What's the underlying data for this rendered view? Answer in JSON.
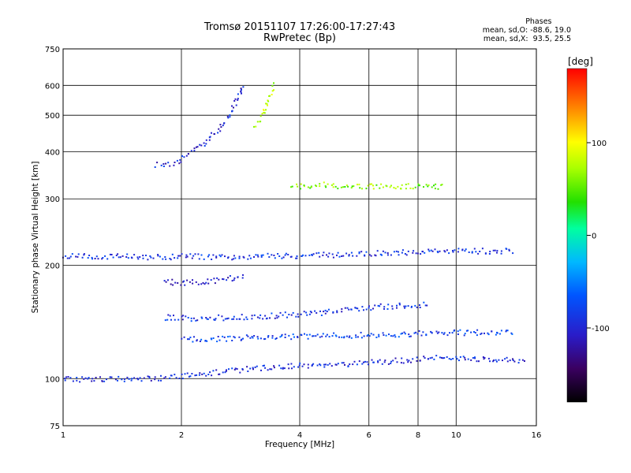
{
  "chart_data": {
    "type": "scatter",
    "title": "Tromsø 20151107 17:26:00-17:27:43",
    "subtitle": "RwPretec (Bp)",
    "xlabel": "Frequency [MHz]",
    "ylabel": "Stationary phase Virtual Height [km]",
    "xscale": "log",
    "yscale": "log",
    "xlim": [
      1,
      16
    ],
    "ylim": [
      75,
      750
    ],
    "x_ticks": [
      "1",
      "2",
      "4",
      "6",
      "8",
      "10",
      "16"
    ],
    "x_tick_values": [
      1,
      2,
      4,
      6,
      8,
      10,
      16
    ],
    "y_ticks": [
      "75",
      "100",
      "200",
      "300",
      "400",
      "500",
      "600",
      "750"
    ],
    "y_tick_values": [
      75,
      100,
      200,
      300,
      400,
      500,
      600,
      750
    ],
    "grid": true,
    "phases": {
      "header": "Phases",
      "line1": "mean, sd,O: -88.6, 19.0",
      "line2": "mean, sd,X:  93.5, 25.5"
    },
    "colorbar": {
      "label": "[deg]",
      "range": [
        -180,
        180
      ],
      "tick_labels": [
        "100",
        "0",
        "-100"
      ],
      "tick_values": [
        100,
        0,
        -100
      ]
    },
    "traces": [
      {
        "id": "O-F2",
        "phase_deg": -100,
        "points": [
          [
            1.72,
            370
          ],
          [
            1.85,
            372
          ],
          [
            1.95,
            380
          ],
          [
            2.05,
            392
          ],
          [
            2.15,
            405
          ],
          [
            2.3,
            425
          ],
          [
            2.45,
            455
          ],
          [
            2.6,
            490
          ],
          [
            2.7,
            525
          ],
          [
            2.8,
            570
          ],
          [
            2.85,
            610
          ]
        ]
      },
      {
        "id": "X-F2",
        "phase_deg": 80,
        "points": [
          [
            3.05,
            470
          ],
          [
            3.15,
            490
          ],
          [
            3.25,
            520
          ],
          [
            3.35,
            560
          ],
          [
            3.42,
            610
          ]
        ]
      },
      {
        "id": "F-band-210",
        "phase_deg": -90,
        "points": [
          [
            1.0,
            212
          ],
          [
            1.35,
            212
          ],
          [
            1.7,
            211
          ],
          [
            2.1,
            212
          ],
          [
            2.6,
            211
          ],
          [
            3.2,
            212
          ],
          [
            4.0,
            213
          ],
          [
            5.0,
            214
          ],
          [
            6.5,
            216
          ],
          [
            8.5,
            218
          ],
          [
            11,
            219
          ],
          [
            14,
            219
          ]
        ]
      },
      {
        "id": "mid-layer-180",
        "phase_deg": -110,
        "points": [
          [
            1.8,
            182
          ],
          [
            2.0,
            180
          ],
          [
            2.3,
            182
          ],
          [
            2.6,
            185
          ],
          [
            2.9,
            187
          ]
        ]
      },
      {
        "id": "layer-145",
        "phase_deg": -90,
        "points": [
          [
            1.8,
            146
          ],
          [
            2.2,
            145
          ],
          [
            2.6,
            146
          ],
          [
            3.2,
            147
          ],
          [
            4.5,
            150
          ],
          [
            6.5,
            156
          ],
          [
            8.5,
            158
          ]
        ]
      },
      {
        "id": "layer-127",
        "phase_deg": -80,
        "points": [
          [
            2.0,
            128
          ],
          [
            2.5,
            128
          ],
          [
            3.0,
            129
          ],
          [
            4.0,
            130
          ],
          [
            5.5,
            131
          ],
          [
            7.5,
            132
          ],
          [
            10,
            133
          ],
          [
            14,
            133
          ]
        ]
      },
      {
        "id": "E-layer-100",
        "phase_deg": -95,
        "points": [
          [
            1.0,
            100
          ],
          [
            1.2,
            100
          ],
          [
            1.5,
            100
          ],
          [
            1.8,
            101
          ],
          [
            2.2,
            103
          ],
          [
            2.8,
            106
          ],
          [
            3.5,
            108
          ],
          [
            4.5,
            109
          ],
          [
            5.5,
            110
          ],
          [
            7.0,
            112
          ],
          [
            9.0,
            114
          ],
          [
            12,
            113
          ],
          [
            15,
            112
          ]
        ]
      },
      {
        "id": "echo-320",
        "phase_deg": 60,
        "points": [
          [
            3.8,
            325
          ],
          [
            4.5,
            328
          ],
          [
            5.5,
            325
          ],
          [
            6.5,
            325
          ],
          [
            8.3,
            325
          ],
          [
            9.3,
            325
          ]
        ]
      }
    ]
  }
}
